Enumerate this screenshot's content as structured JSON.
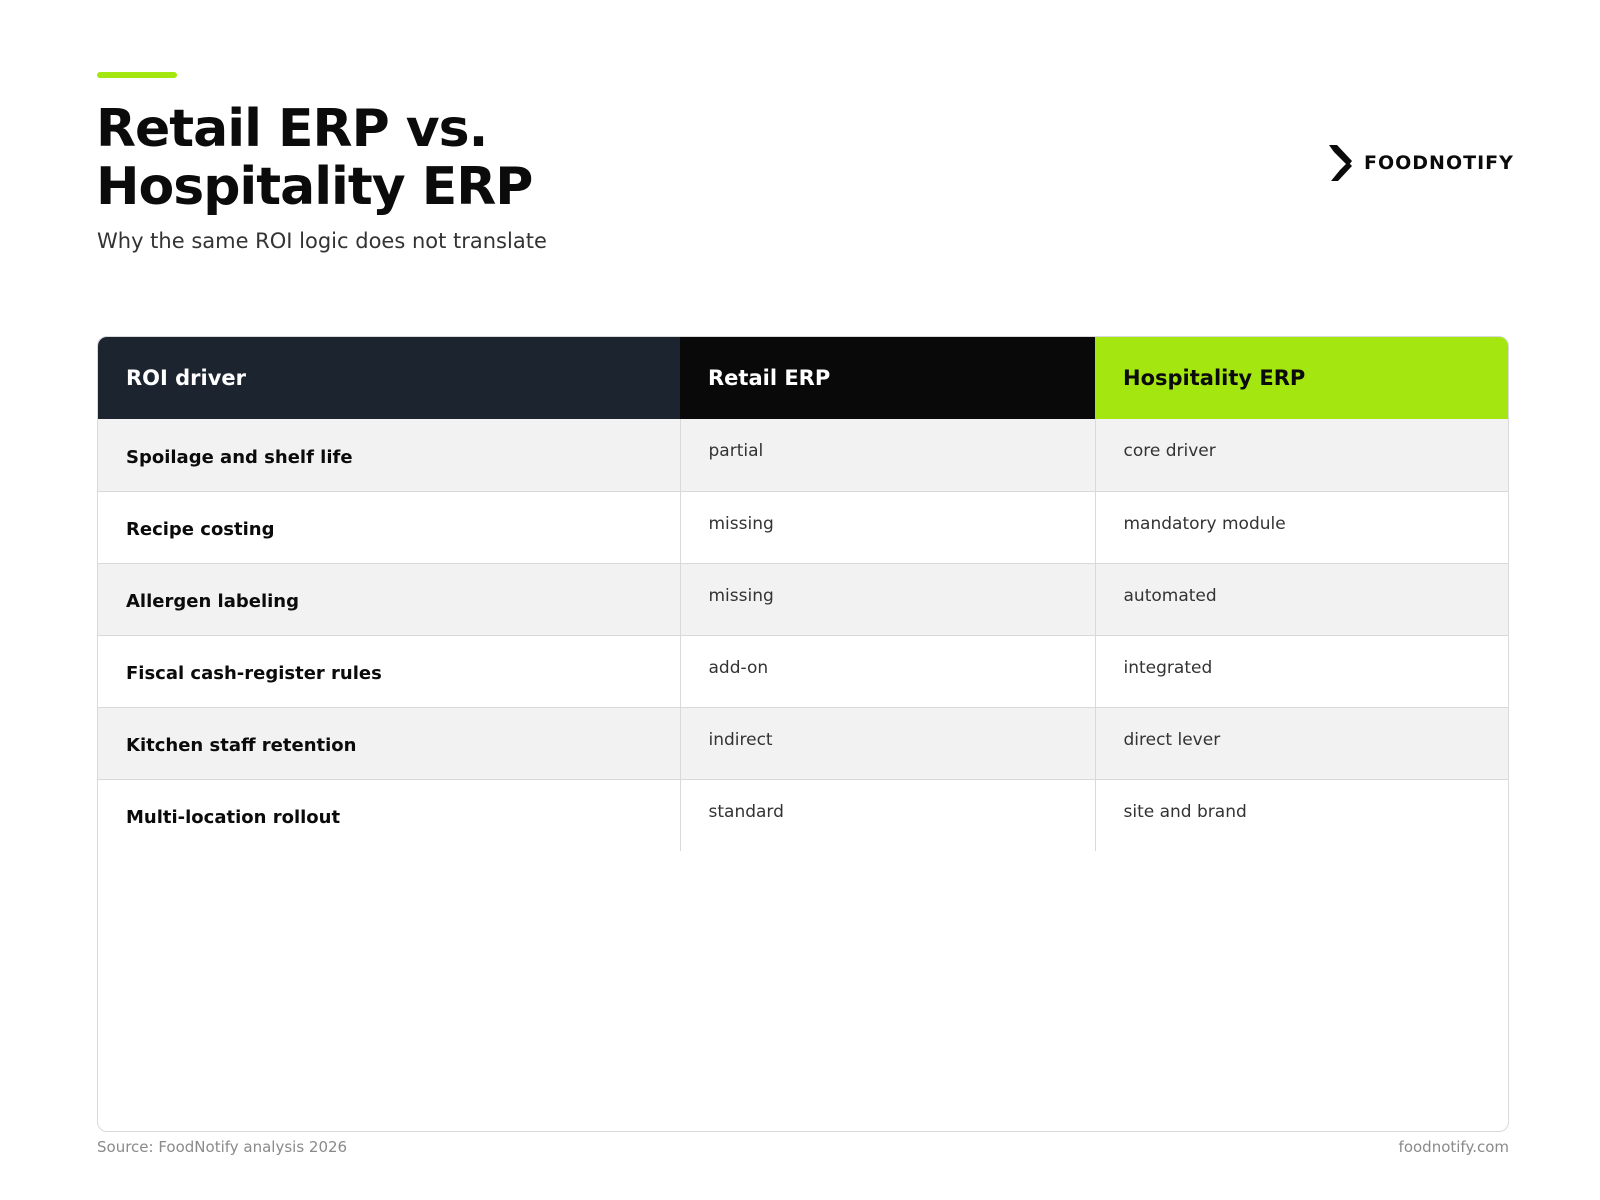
{
  "colors": {
    "accent": "#a4e60f",
    "header_driver_bg": "#1c2430",
    "header_retail_bg": "#090909",
    "row_alt_bg": "#f2f2f2"
  },
  "header": {
    "title_line1": "Retail ERP vs.",
    "title_line2": "Hospitality ERP",
    "subtitle": "Why the same ROI logic does not translate"
  },
  "brand": {
    "icon": "foodnotify-logo-mark",
    "name": "FOODNOTIFY"
  },
  "table": {
    "columns": [
      "ROI driver",
      "Retail ERP",
      "Hospitality ERP"
    ],
    "rows": [
      {
        "driver": "Spoilage and shelf life",
        "retail": "partial",
        "hospitality": "core driver"
      },
      {
        "driver": "Recipe costing",
        "retail": "missing",
        "hospitality": "mandatory module"
      },
      {
        "driver": "Allergen labeling",
        "retail": "missing",
        "hospitality": "automated"
      },
      {
        "driver": "Fiscal cash-register rules",
        "retail": "add-on",
        "hospitality": "integrated"
      },
      {
        "driver": "Kitchen staff retention",
        "retail": "indirect",
        "hospitality": "direct lever"
      },
      {
        "driver": "Multi-location rollout",
        "retail": "standard",
        "hospitality": "site and brand"
      }
    ]
  },
  "footer": {
    "source": "Source: FoodNotify analysis 2026",
    "site": "foodnotify.com"
  }
}
